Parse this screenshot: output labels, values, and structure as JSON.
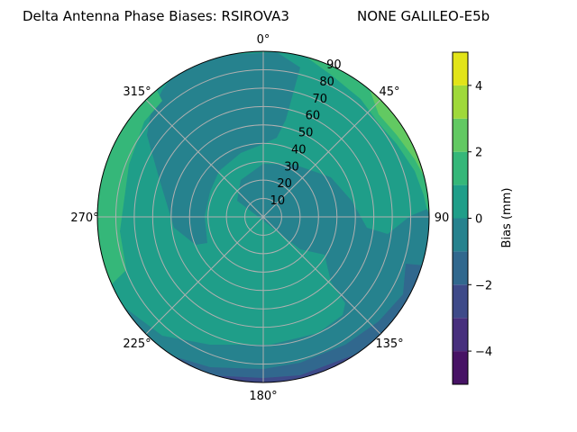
{
  "chart_data": {
    "type": "polar-contour",
    "title_left": "Delta Antenna Phase Biases: RSIROVA3",
    "title_right": "NONE GALILEO-E5b",
    "theta_ticks": [
      {
        "deg": 0,
        "label": "0°"
      },
      {
        "deg": 45,
        "label": "45°"
      },
      {
        "deg": 90,
        "label": "90"
      },
      {
        "deg": 135,
        "label": "135°"
      },
      {
        "deg": 180,
        "label": "180°"
      },
      {
        "deg": 225,
        "label": "225°"
      },
      {
        "deg": 270,
        "label": "270°"
      },
      {
        "deg": 315,
        "label": "315°"
      }
    ],
    "r_ticks": [
      "10",
      "20",
      "30",
      "40",
      "50",
      "60",
      "70",
      "80",
      "90"
    ],
    "r_range": [
      0,
      90
    ],
    "theta_direction": "clockwise",
    "theta_zero": "north",
    "grid": true,
    "levels": [
      -5,
      -4,
      -3,
      -2,
      -1,
      0,
      1,
      2,
      3,
      4,
      5
    ],
    "colors": [
      "#471365",
      "#472f7d",
      "#3e4a89",
      "#31688e",
      "#26828e",
      "#1f9e89",
      "#35b779",
      "#62c962",
      "#9fd93a",
      "#e2e418"
    ],
    "colorbar": {
      "label": "Bias (mm)",
      "range": [
        -5,
        5
      ],
      "ticks": [
        {
          "v": -4,
          "label": "−4"
        },
        {
          "v": -2,
          "label": "−2"
        },
        {
          "v": 0,
          "label": "0"
        },
        {
          "v": 2,
          "label": "2"
        },
        {
          "v": 4,
          "label": "4"
        }
      ]
    }
  }
}
